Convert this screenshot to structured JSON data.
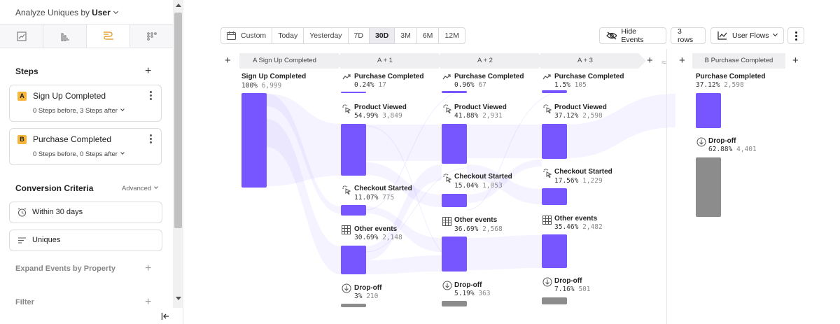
{
  "sidebar": {
    "analyze_prefix": "Analyze Uniques by",
    "analyze_value": "User",
    "steps_title": "Steps",
    "steps": [
      {
        "badge": "A",
        "name": "Sign Up Completed",
        "sub": "0 Steps before, 3 Steps after"
      },
      {
        "badge": "B",
        "name": "Purchase Completed",
        "sub": "0 Steps before, 0 Steps after"
      }
    ],
    "conversion_title": "Conversion Criteria",
    "advanced_label": "Advanced",
    "window_label": "Within 30 days",
    "counting_label": "Uniques",
    "expand_title": "Expand Events by Property",
    "filter_title": "Filter"
  },
  "toolbar": {
    "date_ranges": [
      "Custom",
      "Today",
      "Yesterday",
      "7D",
      "30D",
      "3M",
      "6M",
      "12M"
    ],
    "selected_range": "30D",
    "hide_events_label": "Hide Events",
    "rows_label": "3 rows",
    "view_label": "User Flows"
  },
  "flow": {
    "columns": [
      {
        "header": "A  Sign Up Completed"
      },
      {
        "header": "A + 1"
      },
      {
        "header": "A + 2"
      },
      {
        "header": "A + 3"
      },
      {
        "header": "B  Purchase Completed"
      }
    ],
    "nodes": {
      "c0_signup": {
        "label": "Sign Up Completed",
        "pct": "100%",
        "count": "6,999"
      },
      "c1_purchase": {
        "label": "Purchase Completed",
        "pct": "0.24%",
        "count": "17"
      },
      "c1_viewed": {
        "label": "Product Viewed",
        "pct": "54.99%",
        "count": "3,849"
      },
      "c1_checkout": {
        "label": "Checkout Started",
        "pct": "11.07%",
        "count": "775"
      },
      "c1_other": {
        "label": "Other events",
        "pct": "30.69%",
        "count": "2,148"
      },
      "c1_drop": {
        "label": "Drop-off",
        "pct": "3%",
        "count": "210"
      },
      "c2_purchase": {
        "label": "Purchase Completed",
        "pct": "0.96%",
        "count": "67"
      },
      "c2_viewed": {
        "label": "Product Viewed",
        "pct": "41.88%",
        "count": "2,931"
      },
      "c2_checkout": {
        "label": "Checkout Started",
        "pct": "15.04%",
        "count": "1,053"
      },
      "c2_other": {
        "label": "Other events",
        "pct": "36.69%",
        "count": "2,568"
      },
      "c2_drop": {
        "label": "Drop-off",
        "pct": "5.19%",
        "count": "363"
      },
      "c3_purchase": {
        "label": "Purchase Completed",
        "pct": "1.5%",
        "count": "105"
      },
      "c3_viewed": {
        "label": "Product Viewed",
        "pct": "37.12%",
        "count": "2,598"
      },
      "c3_checkout": {
        "label": "Checkout Started",
        "pct": "17.56%",
        "count": "1,229"
      },
      "c3_other": {
        "label": "Other events",
        "pct": "35.46%",
        "count": "2,482"
      },
      "c3_drop": {
        "label": "Drop-off",
        "pct": "7.16%",
        "count": "501"
      },
      "b_purchase": {
        "label": "Purchase Completed",
        "pct": "37.12%",
        "count": "2,598"
      },
      "b_drop": {
        "label": "Drop-off",
        "pct": "62.88%",
        "count": "4,401"
      }
    }
  },
  "colors": {
    "accent": "#7856ff",
    "flow": "#7856ff",
    "dropoff": "#8c8c8c",
    "badge": "#f5b63b"
  }
}
